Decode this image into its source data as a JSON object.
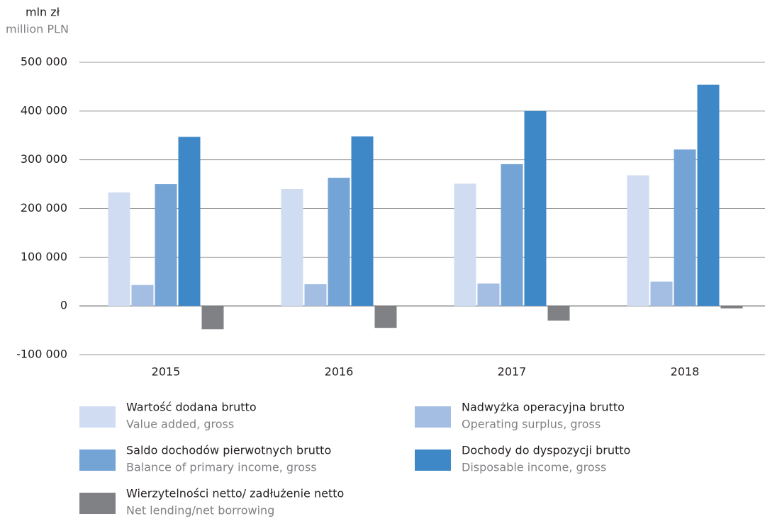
{
  "chart_data": {
    "type": "bar",
    "y_label": "mln zł",
    "y_label_en": "million PLN",
    "categories": [
      "2015",
      "2016",
      "2017",
      "2018"
    ],
    "series": [
      {
        "name": "Wartość dodana brutto",
        "name_en": "Value added, gross",
        "color": "#cfdcf1",
        "values": [
          233000,
          240000,
          251000,
          268000
        ]
      },
      {
        "name": "Nadwyżka operacyjna brutto",
        "name_en": "Operating surplus, gross",
        "color": "#a3bde3",
        "values": [
          43000,
          45000,
          46000,
          50000
        ]
      },
      {
        "name": "Saldo dochodów pierwotnych brutto",
        "name_en": "Balance of primary income, gross",
        "color": "#74a3d6",
        "values": [
          250000,
          263000,
          291000,
          321000
        ]
      },
      {
        "name": "Dochody do dyspozycji brutto",
        "name_en": "Disposable income, gross",
        "color": "#3f88c8",
        "values": [
          347000,
          348000,
          400000,
          454000
        ]
      },
      {
        "name": "Wierzytelności netto/ zadłużenie netto",
        "name_en": "Net lending/net borrowing",
        "color": "#808184",
        "values": [
          -48000,
          -45000,
          -30000,
          -5000
        ]
      }
    ],
    "ylim": [
      -100000,
      500000
    ],
    "yticks": [
      {
        "value": -100000,
        "label": "-100 000"
      },
      0,
      {
        "value": 100000,
        "label": "100 000"
      },
      {
        "value": 200000,
        "label": "200 000"
      },
      {
        "value": 300000,
        "label": "300 000"
      },
      {
        "value": 400000,
        "label": "400 000"
      },
      {
        "value": 500000,
        "label": "500 000"
      }
    ],
    "grid": true
  }
}
